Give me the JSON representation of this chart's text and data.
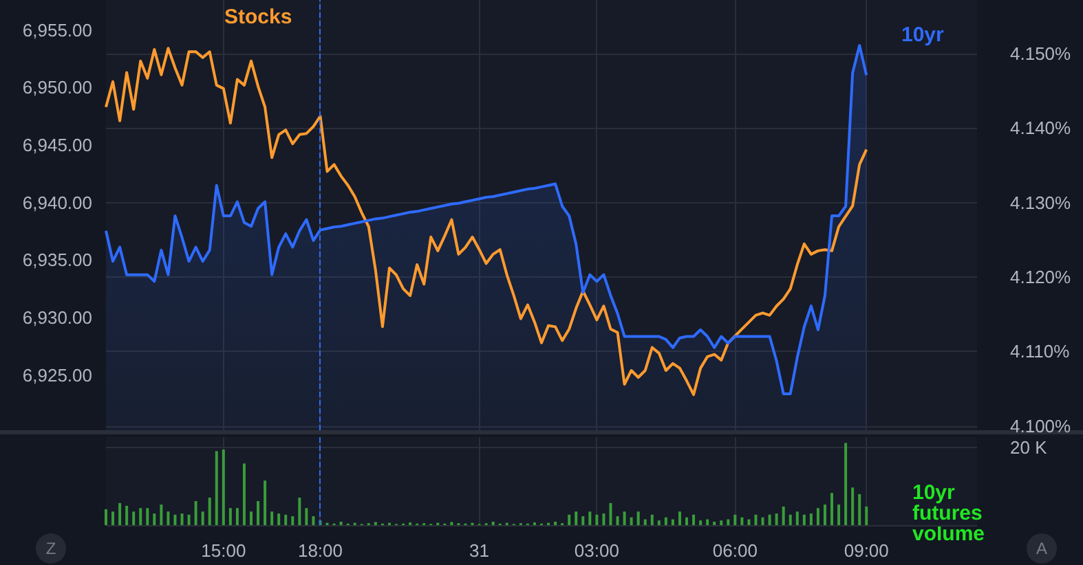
{
  "chart_data": [
    {
      "type": "line",
      "categories": [
        null,
        null,
        null,
        null,
        null,
        null,
        null,
        null,
        null,
        null,
        null,
        null,
        null,
        null,
        null,
        null,
        null,
        "15:00",
        null,
        null,
        null,
        null,
        null,
        null,
        null,
        null,
        null,
        null,
        null,
        null,
        null,
        "18:00",
        null,
        null,
        null,
        null,
        null,
        null,
        null,
        null,
        null,
        null,
        null,
        null,
        null,
        null,
        null,
        null,
        null,
        null,
        null,
        null,
        null,
        null,
        "31",
        null,
        null,
        null,
        null,
        null,
        null,
        null,
        null,
        null,
        null,
        null,
        null,
        null,
        null,
        null,
        null,
        "03:00",
        null,
        null,
        null,
        null,
        null,
        null,
        null,
        null,
        null,
        null,
        null,
        null,
        null,
        null,
        null,
        null,
        null,
        null,
        null,
        "06:00",
        null,
        null,
        null,
        null,
        null,
        null,
        null,
        null,
        null,
        null,
        null,
        null,
        null,
        null,
        null,
        null,
        null,
        null,
        "09:00",
        null,
        null,
        null,
        null,
        null,
        null,
        null,
        null,
        null,
        null,
        null,
        null,
        null,
        null,
        null,
        null
      ],
      "series": [
        {
          "name": "Stocks",
          "type": "line",
          "axis": "y",
          "color": "#ff9b2f",
          "values": [
            6948.3,
            6950.5,
            6947.1,
            6951.3,
            6948.1,
            6952.3,
            6950.8,
            6953.3,
            6951.1,
            6953.4,
            6951.7,
            6950.2,
            6953.1,
            6953.1,
            6952.6,
            6953.1,
            6950.2,
            6949.9,
            6946.9,
            6950.7,
            6950.2,
            6952.3,
            6950.1,
            6948.3,
            6943.9,
            6945.9,
            6946.3,
            6945.1,
            6945.9,
            6946.0,
            6946.6,
            6947.5,
            6942.7,
            6943.3,
            6942.3,
            6941.5,
            6940.5,
            6939.1,
            6937.9,
            6934.1,
            6929.2,
            6934.3,
            6933.7,
            6932.5,
            6931.9,
            6934.6,
            6932.9,
            6937.0,
            6935.8,
            6937.1,
            6938.5,
            6935.5,
            6936.1,
            6937.0,
            6935.9,
            6934.7,
            6935.5,
            6935.9,
            6933.7,
            6931.9,
            6929.9,
            6931.1,
            6929.6,
            6927.8,
            6929.3,
            6929.2,
            6928.0,
            6929.0,
            6930.8,
            6932.3,
            6931.1,
            6929.8,
            6931.0,
            6929.0,
            6928.7,
            6924.2,
            6925.4,
            6924.8,
            6925.4,
            6927.4,
            6926.9,
            6925.4,
            6926.0,
            6925.6,
            6924.5,
            6923.3,
            6925.6,
            6926.6,
            6926.8,
            6926.3,
            6927.8,
            6928.4,
            6929.0,
            6929.6,
            6930.2,
            6930.4,
            6930.2,
            6931.0,
            6931.6,
            6932.5,
            6934.6,
            6936.4,
            6935.5,
            6935.8,
            6935.9,
            6935.8,
            6937.9,
            6938.8,
            6939.7,
            6943.3,
            6944.6,
            null,
            null,
            null,
            null,
            null,
            null,
            null,
            null,
            null,
            null,
            null,
            null,
            null,
            null,
            null,
            null
          ]
        },
        {
          "name": "10yr",
          "type": "area",
          "axis": "y2",
          "color": "#2f6bff",
          "values": [
            4.1262,
            4.1221,
            4.124,
            4.1203,
            4.1203,
            4.1203,
            4.1203,
            4.1194,
            4.1236,
            4.1203,
            4.1282,
            4.1253,
            4.1221,
            4.124,
            4.1221,
            4.1236,
            4.1323,
            4.1282,
            4.1282,
            4.1301,
            4.1273,
            4.1268,
            4.1292,
            4.1301,
            4.1203,
            4.124,
            4.1258,
            4.124,
            4.1262,
            4.1277,
            4.1249,
            4.1263,
            4.1265,
            4.1267,
            4.1268,
            4.127,
            4.1272,
            4.1274,
            4.1276,
            4.1278,
            4.1279,
            4.1281,
            4.1283,
            4.1285,
            4.1287,
            4.1288,
            4.129,
            4.1292,
            4.1294,
            4.1296,
            4.1298,
            4.1299,
            4.1301,
            4.1303,
            4.1305,
            4.1307,
            4.1308,
            4.131,
            4.1312,
            4.1314,
            4.1316,
            4.1318,
            4.1319,
            4.1321,
            4.1323,
            4.1325,
            4.1295,
            4.1282,
            4.1244,
            4.1179,
            4.1203,
            4.1194,
            4.1203,
            4.1175,
            4.1151,
            4.112,
            4.112,
            4.112,
            4.112,
            4.112,
            4.112,
            4.1116,
            4.1105,
            4.1118,
            4.112,
            4.112,
            4.1129,
            4.112,
            4.1105,
            4.112,
            4.1111,
            4.112,
            4.112,
            4.112,
            4.112,
            4.112,
            4.112,
            4.1087,
            4.1043,
            4.1043,
            4.1092,
            4.1133,
            4.1161,
            4.1129,
            4.1175,
            4.1282,
            4.1282,
            4.1295,
            4.1474,
            4.1511,
            4.1471,
            null,
            null,
            null,
            null,
            null,
            null,
            null,
            null,
            null,
            null,
            null,
            null,
            null,
            null,
            null,
            null
          ]
        }
      ],
      "ylim": [
        6920.2,
        6957.6
      ],
      "yticks": [
        {
          "value": 6925,
          "label": "6,925.00"
        },
        {
          "value": 6930,
          "label": "6,930.00"
        },
        {
          "value": 6935,
          "label": "6,935.00"
        },
        {
          "value": 6940,
          "label": "6,940.00"
        },
        {
          "value": 6945,
          "label": "6,945.00"
        },
        {
          "value": 6950,
          "label": "6,950.00"
        },
        {
          "value": 6955,
          "label": "6,955.00"
        }
      ],
      "y2lim": [
        4.0994,
        4.1572
      ],
      "y2ticks": [
        {
          "value": 4.1,
          "label": "4.100%"
        },
        {
          "value": 4.11,
          "label": "4.110%"
        },
        {
          "value": 4.12,
          "label": "4.120%"
        },
        {
          "value": 4.13,
          "label": "4.130%"
        },
        {
          "value": 4.14,
          "label": "4.140%"
        },
        {
          "value": 4.15,
          "label": "4.150%"
        }
      ],
      "ref_lines": [
        {
          "axis": "x",
          "value": "18:00",
          "color": "#2f6bff",
          "line_style": "dashed"
        }
      ],
      "grid": true,
      "legend": false,
      "tick_labels": "y"
    },
    {
      "type": "bar",
      "categories": [
        null,
        null,
        null,
        null,
        null,
        null,
        null,
        null,
        null,
        null,
        null,
        null,
        null,
        null,
        null,
        null,
        null,
        "15:00",
        null,
        null,
        null,
        null,
        null,
        null,
        null,
        null,
        null,
        null,
        null,
        null,
        null,
        "18:00",
        null,
        null,
        null,
        null,
        null,
        null,
        null,
        null,
        null,
        null,
        null,
        null,
        null,
        null,
        null,
        null,
        null,
        null,
        null,
        null,
        null,
        null,
        "31",
        null,
        null,
        null,
        null,
        null,
        null,
        null,
        null,
        null,
        null,
        null,
        null,
        null,
        null,
        null,
        null,
        "03:00",
        null,
        null,
        null,
        null,
        null,
        null,
        null,
        null,
        null,
        null,
        null,
        null,
        null,
        null,
        null,
        null,
        null,
        null,
        null,
        "06:00",
        null,
        null,
        null,
        null,
        null,
        null,
        null,
        null,
        null,
        null,
        null,
        null,
        null,
        null,
        null,
        null,
        null,
        null,
        "09:00",
        null,
        null,
        null,
        null,
        null,
        null,
        null,
        null,
        null,
        null,
        null,
        null,
        null,
        null,
        null,
        null
      ],
      "series": [
        {
          "name": "10yr futures volume",
          "color": "#3a9d3a",
          "values": [
            4100,
            3500,
            5700,
            5000,
            3500,
            4400,
            4400,
            3000,
            5300,
            3500,
            2700,
            3000,
            2700,
            6200,
            3500,
            7100,
            19100,
            19500,
            4400,
            4400,
            15900,
            3500,
            6200,
            11500,
            3500,
            3000,
            2700,
            2300,
            7100,
            4400,
            2300,
            1200,
            600,
            400,
            900,
            400,
            600,
            300,
            500,
            800,
            400,
            600,
            300,
            400,
            700,
            400,
            500,
            300,
            600,
            400,
            800,
            500,
            400,
            600,
            300,
            500,
            900,
            400,
            600,
            300,
            500,
            400,
            700,
            400,
            600,
            900,
            500,
            2700,
            3500,
            2300,
            3500,
            2700,
            3000,
            5700,
            2300,
            3500,
            2000,
            3500,
            1500,
            2700,
            1200,
            2000,
            1500,
            3500,
            2000,
            2700,
            1200,
            1500,
            900,
            1200,
            1500,
            2700,
            2000,
            1500,
            2700,
            2000,
            2700,
            3000,
            4800,
            2700,
            3500,
            2700,
            3000,
            4400,
            5300,
            8300,
            5300,
            21200,
            9700,
            8000,
            4800,
            null,
            null,
            null,
            null,
            null,
            null,
            null,
            null,
            null,
            null,
            null,
            null,
            null,
            null,
            null,
            null
          ]
        }
      ],
      "ylim": [
        0,
        22700
      ],
      "yticks": [
        {
          "value": 0,
          "label": null
        },
        {
          "value": 20000,
          "label": "20 K"
        }
      ],
      "ref_lines": [
        {
          "axis": "x",
          "value": "18:00",
          "color": "#2f6bff",
          "line_style": "dashed"
        }
      ],
      "annotations": [
        "Z",
        "A"
      ],
      "grid": true,
      "legend": false
    }
  ]
}
